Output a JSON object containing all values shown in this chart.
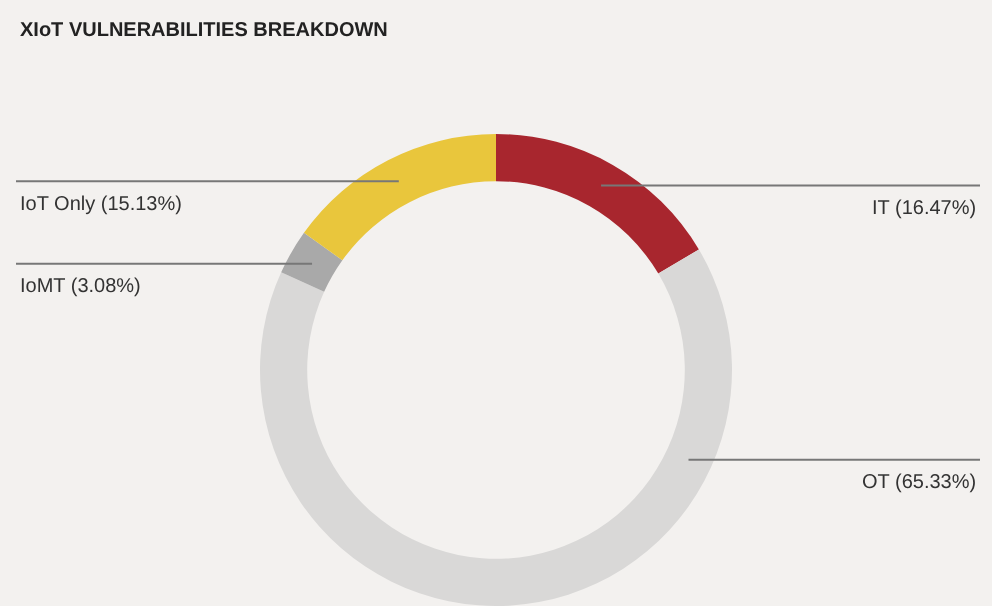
{
  "chart_data": {
    "type": "donut",
    "title": "XIoT VULNERABILITIES BREAKDOWN",
    "categories": [
      "IT (16.47%)",
      "OT (65.33%)",
      "IoMT (3.08%)",
      "IoT Only (15.13%)"
    ],
    "values": [
      16.47,
      65.33,
      3.08,
      15.13
    ],
    "colors": [
      "#a8262e",
      "#d9d8d7",
      "#a9a9a9",
      "#e9c63c"
    ]
  }
}
